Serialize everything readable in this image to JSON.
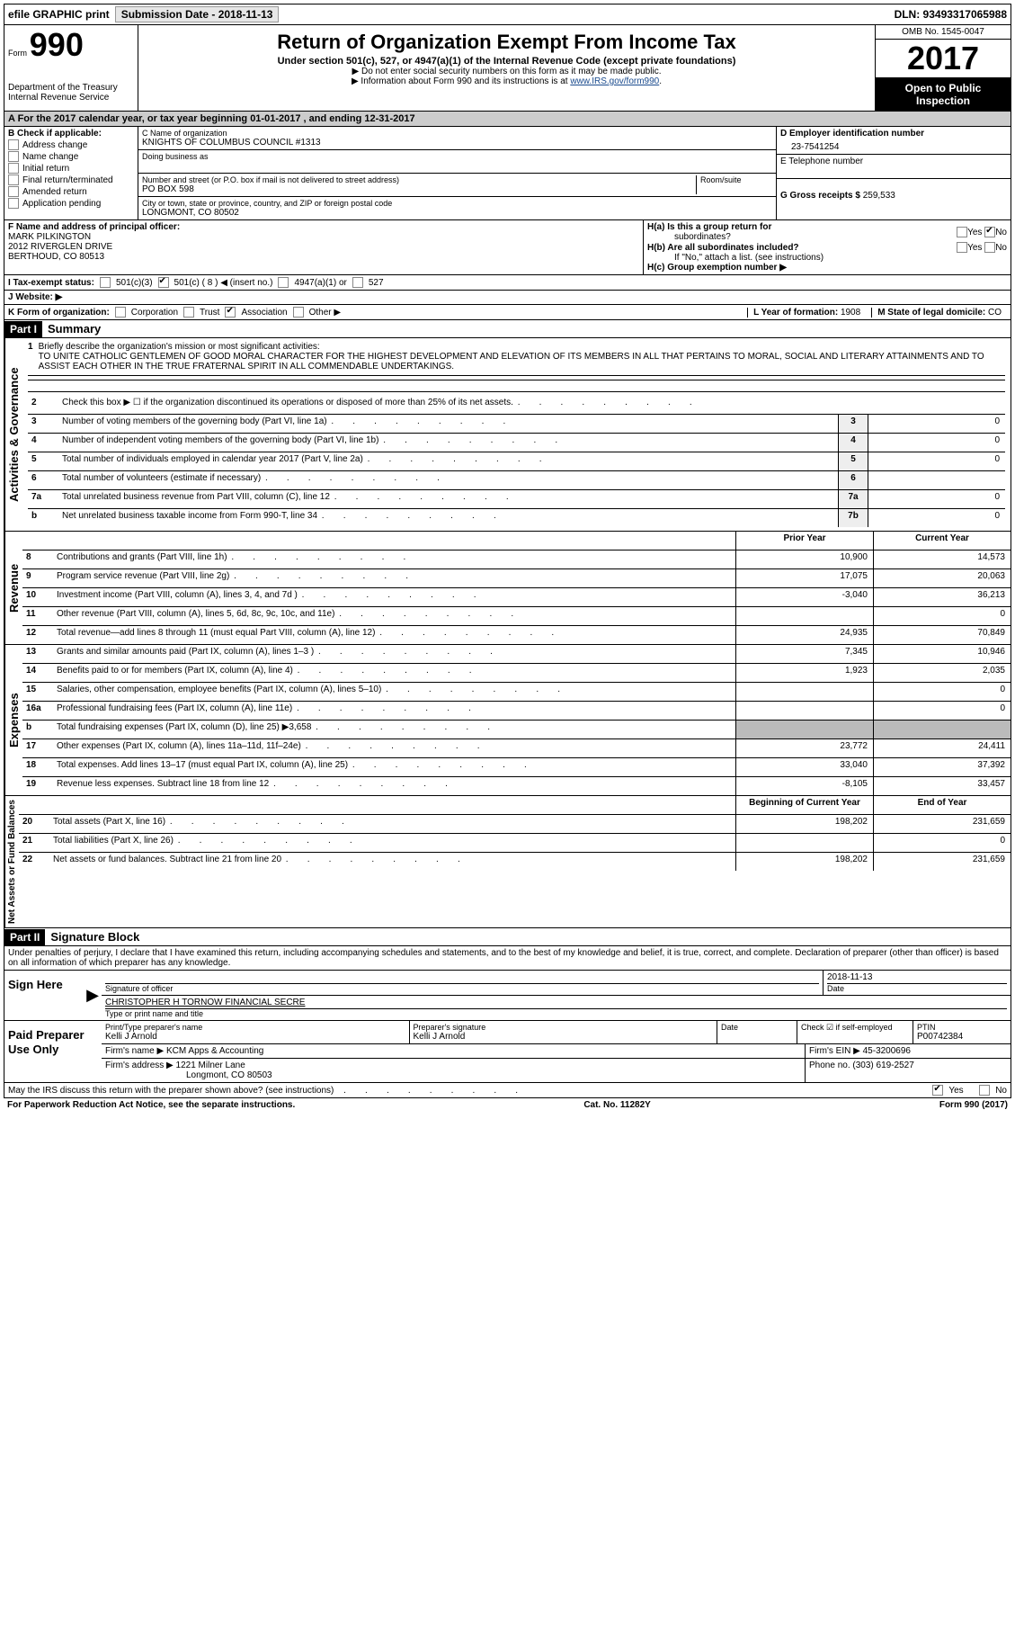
{
  "topbar": {
    "efile": "efile GRAPHIC print",
    "submission": "Submission Date - 2018-11-13",
    "dln": "DLN: 93493317065988"
  },
  "header": {
    "form_label": "Form",
    "form_number": "990",
    "dept": "Department of the Treasury",
    "irs": "Internal Revenue Service",
    "title": "Return of Organization Exempt From Income Tax",
    "subtitle": "Under section 501(c), 527, or 4947(a)(1) of the Internal Revenue Code (except private foundations)",
    "note1": "▶ Do not enter social security numbers on this form as it may be made public.",
    "note2_a": "▶ Information about Form 990 and its instructions is at ",
    "note2_link": "www.IRS.gov/form990",
    "omb": "OMB No. 1545-0047",
    "year": "2017",
    "open": "Open to Public Inspection"
  },
  "section_a": "A  For the 2017 calendar year, or tax year beginning 01-01-2017   , and ending 12-31-2017",
  "box_b": {
    "label": "B Check if applicable:",
    "items": [
      "Address change",
      "Name change",
      "Initial return",
      "Final return/terminated",
      "Amended return",
      "Application pending"
    ]
  },
  "box_c": {
    "name_lbl": "C Name of organization",
    "name": "KNIGHTS OF COLUMBUS COUNCIL #1313",
    "dba_lbl": "Doing business as",
    "street_lbl": "Number and street (or P.O. box if mail is not delivered to street address)",
    "room_lbl": "Room/suite",
    "street": "PO BOX 598",
    "city_lbl": "City or town, state or province, country, and ZIP or foreign postal code",
    "city": "LONGMONT, CO  80502"
  },
  "box_d": {
    "ein_lbl": "D Employer identification number",
    "ein": "23-7541254",
    "tel_lbl": "E Telephone number",
    "gross_lbl": "G Gross receipts $",
    "gross": "259,533"
  },
  "box_f": {
    "lbl": "F  Name and address of principal officer:",
    "name": "MARK PILKINGTON",
    "addr1": "2012 RIVERGLEN DRIVE",
    "addr2": "BERTHOUD, CO  80513"
  },
  "box_h": {
    "a_lbl": "H(a)  Is this a group return for",
    "a_sub": "subordinates?",
    "b_lbl": "H(b)  Are all subordinates included?",
    "b_note": "If \"No,\" attach a list. (see instructions)",
    "c_lbl": "H(c)  Group exemption number ▶"
  },
  "row_i": {
    "lbl": "I  Tax-exempt status:",
    "opts": [
      "501(c)(3)",
      "501(c) ( 8 ) ◀ (insert no.)",
      "4947(a)(1) or",
      "527"
    ]
  },
  "row_j": "J  Website: ▶",
  "row_k": {
    "lbl": "K Form of organization:",
    "opts": [
      "Corporation",
      "Trust",
      "Association",
      "Other ▶"
    ],
    "l_lbl": "L Year of formation:",
    "l_val": "1908",
    "m_lbl": "M State of legal domicile:",
    "m_val": "CO"
  },
  "part1": {
    "hdr": "Part I",
    "title": "Summary"
  },
  "gov_label": "Activities & Governance",
  "mission": {
    "num": "1",
    "lbl": "Briefly describe the organization's mission or most significant activities:",
    "text": "TO UNITE CATHOLIC GENTLEMEN OF GOOD MORAL CHARACTER FOR THE HIGHEST DEVELOPMENT AND ELEVATION OF ITS MEMBERS IN ALL THAT PERTAINS TO MORAL, SOCIAL AND LITERARY ATTAINMENTS AND TO ASSIST EACH OTHER IN THE TRUE FRATERNAL SPIRIT IN ALL COMMENDABLE UNDERTAKINGS."
  },
  "gov_rows": [
    {
      "n": "2",
      "d": "Check this box ▶ ☐  if the organization discontinued its operations or disposed of more than 25% of its net assets.",
      "box": "",
      "v": ""
    },
    {
      "n": "3",
      "d": "Number of voting members of the governing body (Part VI, line 1a)",
      "box": "3",
      "v": "0"
    },
    {
      "n": "4",
      "d": "Number of independent voting members of the governing body (Part VI, line 1b)",
      "box": "4",
      "v": "0"
    },
    {
      "n": "5",
      "d": "Total number of individuals employed in calendar year 2017 (Part V, line 2a)",
      "box": "5",
      "v": "0"
    },
    {
      "n": "6",
      "d": "Total number of volunteers (estimate if necessary)",
      "box": "6",
      "v": ""
    },
    {
      "n": "7a",
      "d": "Total unrelated business revenue from Part VIII, column (C), line 12",
      "box": "7a",
      "v": "0"
    },
    {
      "n": "b",
      "d": "Net unrelated business taxable income from Form 990-T, line 34",
      "box": "7b",
      "v": "0"
    }
  ],
  "rev_label": "Revenue",
  "col_headers": {
    "prior": "Prior Year",
    "curr": "Current Year"
  },
  "rev_rows": [
    {
      "n": "8",
      "d": "Contributions and grants (Part VIII, line 1h)",
      "p": "10,900",
      "c": "14,573"
    },
    {
      "n": "9",
      "d": "Program service revenue (Part VIII, line 2g)",
      "p": "17,075",
      "c": "20,063"
    },
    {
      "n": "10",
      "d": "Investment income (Part VIII, column (A), lines 3, 4, and 7d )",
      "p": "-3,040",
      "c": "36,213"
    },
    {
      "n": "11",
      "d": "Other revenue (Part VIII, column (A), lines 5, 6d, 8c, 9c, 10c, and 11e)",
      "p": "",
      "c": "0"
    },
    {
      "n": "12",
      "d": "Total revenue—add lines 8 through 11 (must equal Part VIII, column (A), line 12)",
      "p": "24,935",
      "c": "70,849"
    }
  ],
  "exp_label": "Expenses",
  "exp_rows": [
    {
      "n": "13",
      "d": "Grants and similar amounts paid (Part IX, column (A), lines 1–3 )",
      "p": "7,345",
      "c": "10,946"
    },
    {
      "n": "14",
      "d": "Benefits paid to or for members (Part IX, column (A), line 4)",
      "p": "1,923",
      "c": "2,035"
    },
    {
      "n": "15",
      "d": "Salaries, other compensation, employee benefits (Part IX, column (A), lines 5–10)",
      "p": "",
      "c": "0"
    },
    {
      "n": "16a",
      "d": "Professional fundraising fees (Part IX, column (A), line 11e)",
      "p": "",
      "c": "0"
    },
    {
      "n": "b",
      "d": "Total fundraising expenses (Part IX, column (D), line 25) ▶3,658",
      "p": "SHADE",
      "c": "SHADE"
    },
    {
      "n": "17",
      "d": "Other expenses (Part IX, column (A), lines 11a–11d, 11f–24e)",
      "p": "23,772",
      "c": "24,411"
    },
    {
      "n": "18",
      "d": "Total expenses. Add lines 13–17 (must equal Part IX, column (A), line 25)",
      "p": "33,040",
      "c": "37,392"
    },
    {
      "n": "19",
      "d": "Revenue less expenses. Subtract line 18 from line 12",
      "p": "-8,105",
      "c": "33,457"
    }
  ],
  "net_label": "Net Assets or Fund Balances",
  "net_headers": {
    "prior": "Beginning of Current Year",
    "curr": "End of Year"
  },
  "net_rows": [
    {
      "n": "20",
      "d": "Total assets (Part X, line 16)",
      "p": "198,202",
      "c": "231,659"
    },
    {
      "n": "21",
      "d": "Total liabilities (Part X, line 26)",
      "p": "",
      "c": "0"
    },
    {
      "n": "22",
      "d": "Net assets or fund balances. Subtract line 21 from line 20",
      "p": "198,202",
      "c": "231,659"
    }
  ],
  "part2": {
    "hdr": "Part II",
    "title": "Signature Block",
    "perjury": "Under penalties of perjury, I declare that I have examined this return, including accompanying schedules and statements, and to the best of my knowledge and belief, it is true, correct, and complete. Declaration of preparer (other than officer) is based on all information of which preparer has any knowledge."
  },
  "sign": {
    "here": "Sign Here",
    "sig_lbl": "Signature of officer",
    "date": "2018-11-13",
    "date_lbl": "Date",
    "name": "CHRISTOPHER H TORNOW FINANCIAL SECRE",
    "name_lbl": "Type or print name and title"
  },
  "preparer": {
    "label": "Paid Preparer Use Only",
    "print_lbl": "Print/Type preparer's name",
    "print_val": "Kelli J Arnold",
    "sig_lbl": "Preparer's signature",
    "sig_val": "Kelli J Arnold",
    "date_lbl": "Date",
    "check_lbl": "Check ☑ if self-employed",
    "ptin_lbl": "PTIN",
    "ptin": "P00742384",
    "firm_name_lbl": "Firm's name    ▶",
    "firm_name": "KCM Apps & Accounting",
    "firm_ein_lbl": "Firm's EIN ▶",
    "firm_ein": "45-3200696",
    "firm_addr_lbl": "Firm's address ▶",
    "firm_addr1": "1221 Milner Lane",
    "firm_addr2": "Longmont, CO  80503",
    "phone_lbl": "Phone no.",
    "phone": "(303) 619-2527"
  },
  "discuss": "May the IRS discuss this return with the preparer shown above? (see instructions)",
  "footer": {
    "left": "For Paperwork Reduction Act Notice, see the separate instructions.",
    "mid": "Cat. No. 11282Y",
    "right": "Form 990 (2017)"
  },
  "yes": "Yes",
  "no": "No"
}
